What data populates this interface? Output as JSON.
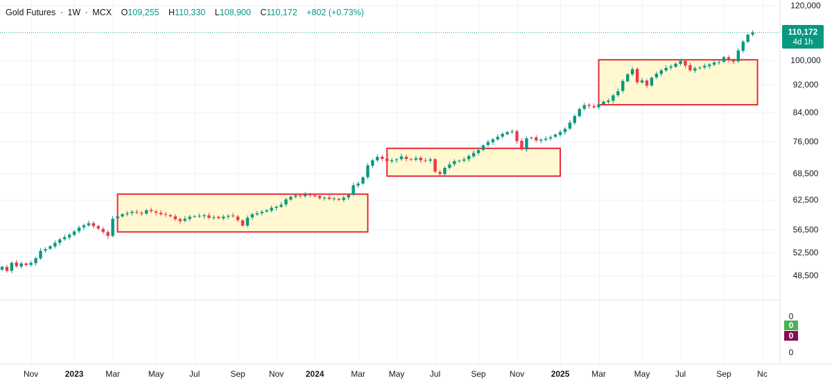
{
  "header": {
    "symbol": "Gold Futures",
    "sep1": "·",
    "interval": "1W",
    "sep2": "·",
    "exchange": "MCX",
    "o_label": "O",
    "o_value": "109,255",
    "h_label": "H",
    "h_value": "110,330",
    "l_label": "L",
    "l_value": "108,900",
    "c_label": "C",
    "c_value": "110,172",
    "change": "+802 (+0.73%)"
  },
  "price_tag": {
    "price": "110,172",
    "countdown": "4d 1h"
  },
  "volume_pane": {
    "axis_top": "0",
    "badge_green": "0",
    "badge_red": "0",
    "axis_bottom": "0"
  },
  "colors": {
    "up": "#089981",
    "down": "#f23645",
    "box_stroke": "#e8283c",
    "box_fill": "#fff8d0",
    "badge_green": "#4caf50",
    "badge_red": "#880e4f",
    "text": "#131722",
    "axis_text": "#131722",
    "grid": "#f0f3fa"
  },
  "chart_data": {
    "type": "candlestick",
    "title": "Gold Futures · 1W · MCX",
    "ylim": [
      45000,
      122000
    ],
    "y_ticks": [
      120000,
      100000,
      92000,
      84000,
      76000,
      68500,
      62500,
      56500,
      52500,
      48500
    ],
    "y_tick_labels": [
      "120,000",
      "100,000",
      "92,000",
      "84,000",
      "76,000",
      "68,500",
      "62,500",
      "56,500",
      "52,500",
      "48,500"
    ],
    "x_labels": [
      {
        "label": "Nov",
        "week": 6,
        "bold": false
      },
      {
        "label": "2023",
        "week": 15,
        "bold": true
      },
      {
        "label": "Mar",
        "week": 23,
        "bold": false
      },
      {
        "label": "May",
        "week": 32,
        "bold": false
      },
      {
        "label": "Jul",
        "week": 40,
        "bold": false
      },
      {
        "label": "Sep",
        "week": 49,
        "bold": false
      },
      {
        "label": "Nov",
        "week": 57,
        "bold": false
      },
      {
        "label": "2024",
        "week": 65,
        "bold": true
      },
      {
        "label": "Mar",
        "week": 74,
        "bold": false
      },
      {
        "label": "May",
        "week": 82,
        "bold": false
      },
      {
        "label": "Jul",
        "week": 90,
        "bold": false
      },
      {
        "label": "Sep",
        "week": 99,
        "bold": false
      },
      {
        "label": "Nov",
        "week": 107,
        "bold": false
      },
      {
        "label": "2025",
        "week": 116,
        "bold": true
      },
      {
        "label": "Mar",
        "week": 124,
        "bold": false
      },
      {
        "label": "May",
        "week": 133,
        "bold": false
      },
      {
        "label": "Jul",
        "week": 141,
        "bold": false
      },
      {
        "label": "Sep",
        "week": 150,
        "bold": false
      },
      {
        "label": "Nc",
        "week": 158,
        "bold": false
      }
    ],
    "closes": [
      50000,
      49300,
      50700,
      50100,
      50600,
      50300,
      50700,
      51500,
      52800,
      53100,
      53600,
      54200,
      54800,
      55200,
      55600,
      56200,
      56900,
      57400,
      57800,
      57200,
      56700,
      56100,
      55400,
      58700,
      59200,
      59600,
      59800,
      60100,
      59900,
      59700,
      60400,
      60200,
      59900,
      59600,
      59500,
      59200,
      58600,
      58200,
      58700,
      59100,
      59200,
      59300,
      59400,
      58900,
      59000,
      58800,
      59100,
      59300,
      59200,
      58400,
      57300,
      58900,
      59600,
      59800,
      60100,
      60400,
      60900,
      61100,
      61500,
      62600,
      63200,
      63500,
      63400,
      63700,
      63500,
      63300,
      62900,
      63000,
      62700,
      62800,
      62500,
      63000,
      63600,
      65800,
      66200,
      67600,
      70400,
      71600,
      72400,
      71900,
      71400,
      71600,
      71800,
      72500,
      71900,
      71700,
      72100,
      71600,
      71500,
      71800,
      68900,
      68400,
      69800,
      70600,
      71400,
      71500,
      71800,
      72600,
      73300,
      74000,
      75100,
      75900,
      76600,
      77300,
      78100,
      78600,
      78800,
      76100,
      74200,
      76900,
      77100,
      76300,
      76500,
      76800,
      77200,
      77900,
      78600,
      79500,
      81200,
      83000,
      85000,
      86100,
      85900,
      85500,
      86300,
      87100,
      87400,
      88900,
      90100,
      93200,
      95400,
      97100,
      92800,
      93400,
      91700,
      94300,
      95600,
      96700,
      97500,
      98000,
      98900,
      99800,
      98300,
      96700,
      97400,
      97600,
      98200,
      98600,
      99300,
      99400,
      101200,
      100100,
      99600,
      103600,
      106800,
      109370,
      110172
    ],
    "annotations": [
      {
        "type": "rectangle",
        "from_week": 24,
        "to_week": 76,
        "y_top": 63800,
        "y_bottom": 56100
      },
      {
        "type": "rectangle",
        "from_week": 80,
        "to_week": 116,
        "y_top": 74400,
        "y_bottom": 67900
      },
      {
        "type": "rectangle",
        "from_week": 124,
        "to_week": 157,
        "y_top": 100200,
        "y_bottom": 86200
      }
    ],
    "last_price_line": 110172
  }
}
